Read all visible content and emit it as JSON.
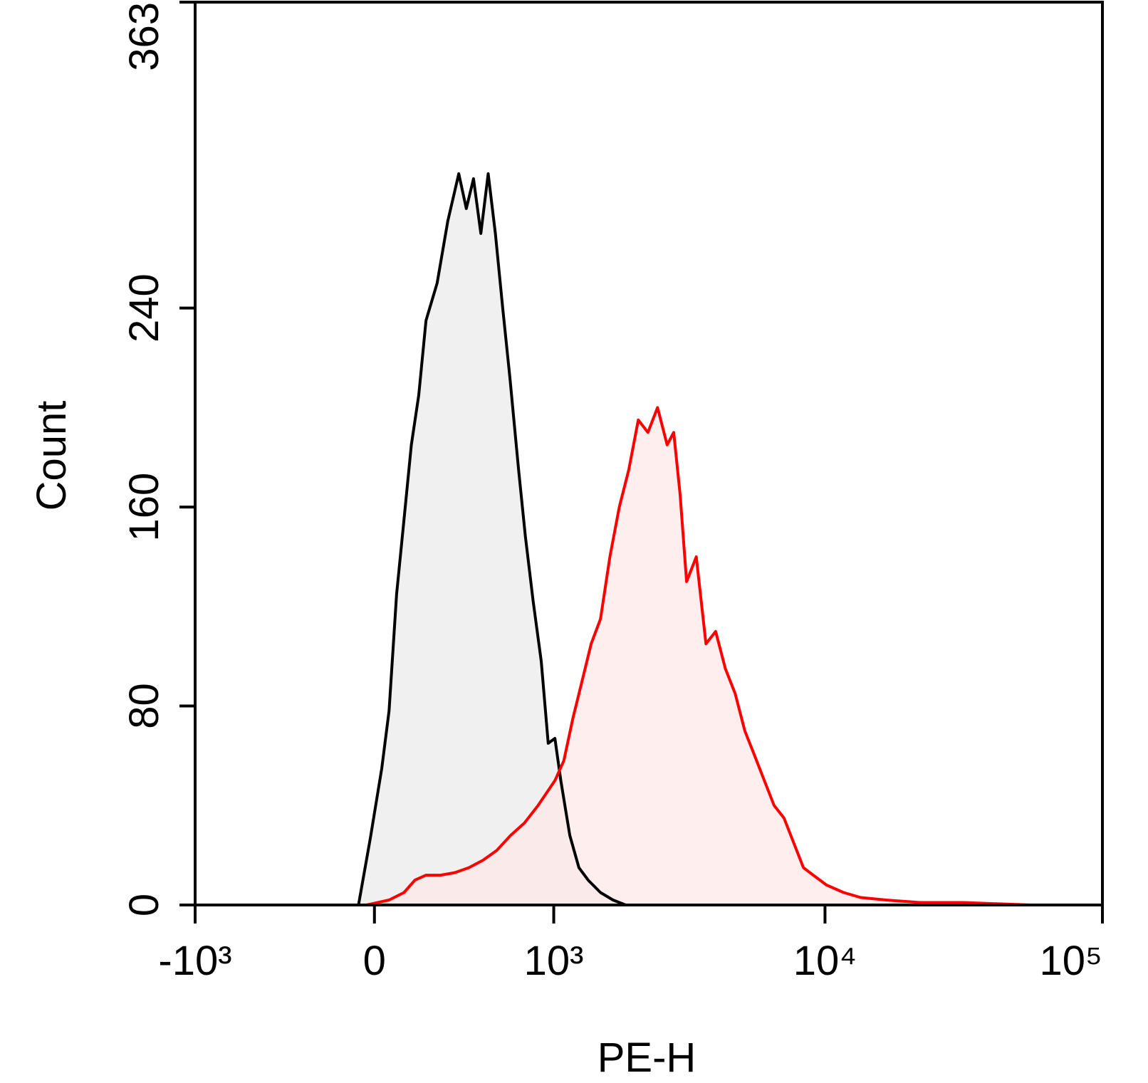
{
  "chart_data": {
    "type": "histogram-overlay",
    "xlabel": "PE-H",
    "ylabel": "Count",
    "xscale": "biexponential",
    "xlim": [
      -1000,
      100000
    ],
    "xticks": [
      {
        "value": -1000,
        "label": "-10³"
      },
      0,
      {
        "value": 1000,
        "label": "10³"
      },
      {
        "value": 10000,
        "label": "10⁴"
      },
      {
        "value": 100000,
        "label": "10⁵"
      }
    ],
    "ylim": [
      0,
      363
    ],
    "yticks": [
      0,
      80,
      160,
      240,
      363
    ],
    "series": [
      {
        "color": "#000000",
        "fill": "#ebebeb",
        "x": [
          -159,
          -63,
          -16,
          29,
          58,
          88,
          118,
          148,
          179,
          210,
          259,
          308,
          361,
          399,
          437,
          477,
          519,
          562,
          608,
          655,
          715,
          765,
          825,
          890,
          950,
          1011,
          1067,
          1157,
          1255,
          1362,
          1517,
          1691,
          1885
        ],
        "values": [
          0,
          0,
          27,
          55,
          78,
          125,
          155,
          185,
          205,
          235,
          250,
          275,
          294,
          280,
          292,
          270,
          294,
          270,
          240,
          212,
          175,
          148,
          122,
          98,
          65,
          67,
          50,
          28,
          15,
          10,
          5,
          2,
          0
        ]
      },
      {
        "color": "#ff0000",
        "fill": "#fde8e8",
        "x": [
          -31,
          58,
          118,
          163,
          210,
          274,
          341,
          412,
          489,
          571,
          660,
          758,
          864,
          1011,
          1096,
          1189,
          1290,
          1398,
          1517,
          1645,
          1784,
          1935,
          2099,
          2278,
          2470,
          2680,
          2831,
          2989,
          3155,
          3422,
          3711,
          4025,
          4367,
          4735,
          5135,
          5571,
          6042,
          6553,
          7108,
          7710,
          8363,
          9071,
          10142,
          11683,
          13456,
          16622,
          21998,
          31384,
          54990,
          78000
        ],
        "values": [
          0,
          2,
          5,
          10,
          12,
          12,
          13,
          15,
          18,
          22,
          28,
          33,
          40,
          50,
          58,
          75,
          90,
          105,
          115,
          140,
          160,
          175,
          195,
          190,
          200,
          185,
          190,
          165,
          130,
          140,
          105,
          110,
          95,
          85,
          70,
          60,
          50,
          40,
          35,
          25,
          15,
          12,
          8,
          5,
          3,
          2,
          1,
          1,
          0,
          0
        ]
      }
    ]
  }
}
